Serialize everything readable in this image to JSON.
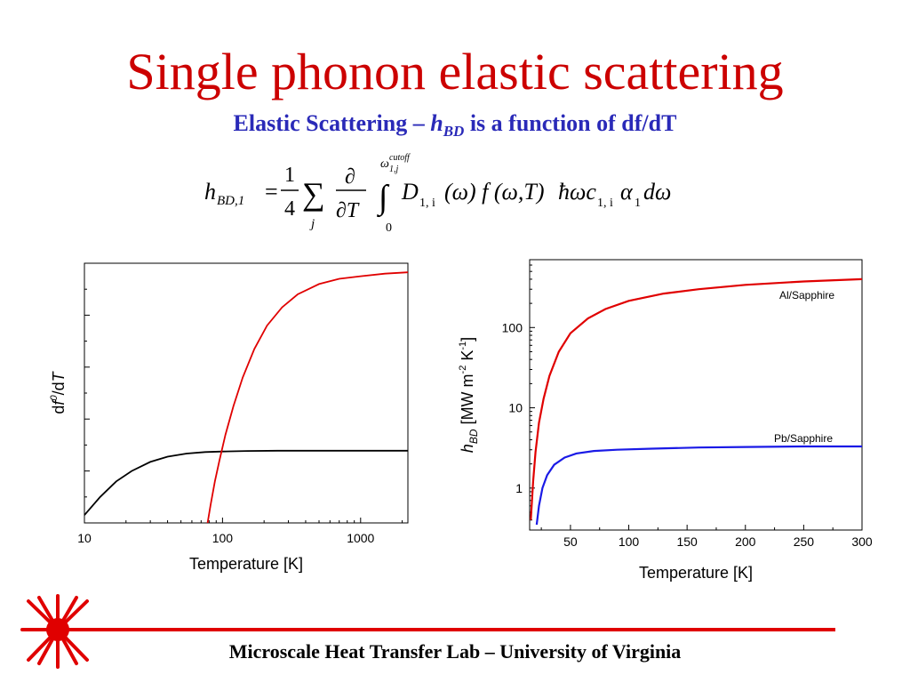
{
  "slide": {
    "title": "Single phonon elastic scattering",
    "subtitle_pre": "Elastic Scattering – ",
    "subtitle_h": "h",
    "subtitle_sub": "BD",
    "subtitle_post": " is a function of df/dT",
    "footer": "Microscale Heat Transfer Lab – University of Virginia"
  },
  "equation": {
    "lhs_h": "h",
    "lhs_sub": "BD,1",
    "equals": "=",
    "frac_num": "1",
    "frac_den": "4",
    "sum_symbol": "∑",
    "sum_index": "j",
    "partial_num": "∂",
    "partial_den": "∂T",
    "integral": "∫",
    "upper_limit_omega": "ω",
    "upper_limit_sup": "cutoff",
    "upper_limit_sub": "1,j",
    "lower_limit": "0",
    "integrand": "D",
    "integrand_sub": "1, i",
    "integrand_rest_1": "(ω) f (ω,T)",
    "integrand_hbar": "ħωc",
    "integrand_c_sub": "1, i",
    "integrand_alpha": "α",
    "integrand_alpha_sub": "1",
    "integrand_end": "dω"
  },
  "colors": {
    "title": "#cc0000",
    "subtitle": "#2a2ab8",
    "red_series": "#e00000",
    "blue_series": "#1a1ae6",
    "black_series": "#000000",
    "footer_line": "#e00000"
  },
  "chart_data": [
    {
      "type": "line",
      "title": "",
      "xlabel": "Temperature [K]",
      "ylabel_pre": "d",
      "ylabel_f": "f",
      "ylabel_sup": "0",
      "ylabel_post": "/d",
      "ylabel_T": "T",
      "xscale": "log",
      "xlim": [
        10,
        2200
      ],
      "ylim": [
        0,
        1
      ],
      "x_ticks": [
        10,
        100,
        1000
      ],
      "x_tick_labels": [
        "10",
        "100",
        "1000"
      ],
      "y_tick_labels_shown": false,
      "series": [
        {
          "color": "#000000",
          "x": [
            10,
            13,
            17,
            22,
            30,
            40,
            55,
            75,
            100,
            150,
            250,
            500,
            1000,
            2200
          ],
          "y": [
            0.03,
            0.1,
            0.16,
            0.2,
            0.235,
            0.255,
            0.267,
            0.273,
            0.275,
            0.277,
            0.278,
            0.278,
            0.278,
            0.278
          ]
        },
        {
          "color": "#e00000",
          "x": [
            78,
            82,
            88,
            95,
            105,
            120,
            140,
            170,
            210,
            270,
            350,
            500,
            700,
            1000,
            1500,
            2200
          ],
          "y": [
            0.0,
            0.07,
            0.16,
            0.24,
            0.34,
            0.45,
            0.56,
            0.67,
            0.76,
            0.83,
            0.88,
            0.92,
            0.94,
            0.95,
            0.96,
            0.965
          ]
        }
      ]
    },
    {
      "type": "line",
      "title": "",
      "xlabel": "Temperature [K]",
      "ylabel_h": "h",
      "ylabel_sub": "BD",
      "ylabel_rest_1": " [MW m",
      "ylabel_sup1": "-2",
      "ylabel_rest_2": " K",
      "ylabel_sup2": "-1",
      "ylabel_rest_3": "]",
      "yscale": "log",
      "xlim": [
        15,
        300
      ],
      "ylim": [
        0.3,
        700
      ],
      "x_ticks": [
        50,
        100,
        150,
        200,
        250,
        300
      ],
      "x_tick_labels": [
        "50",
        "100",
        "150",
        "200",
        "250",
        "300"
      ],
      "y_ticks": [
        1,
        10,
        100
      ],
      "y_tick_labels": [
        "1",
        "10",
        "100"
      ],
      "series": [
        {
          "name": "Al/Sapphire",
          "color": "#e00000",
          "x": [
            16,
            18,
            20,
            23,
            27,
            32,
            40,
            50,
            65,
            80,
            100,
            130,
            160,
            200,
            250,
            300
          ],
          "y": [
            0.4,
            1.2,
            2.8,
            6.5,
            13,
            25,
            50,
            85,
            130,
            170,
            215,
            265,
            300,
            340,
            375,
            400
          ]
        },
        {
          "name": "Pb/Sapphire",
          "color": "#1a1ae6",
          "x": [
            21,
            23,
            26,
            30,
            36,
            45,
            55,
            70,
            90,
            120,
            160,
            200,
            250,
            300
          ],
          "y": [
            0.35,
            0.6,
            1.0,
            1.45,
            1.95,
            2.4,
            2.7,
            2.9,
            3.0,
            3.1,
            3.2,
            3.25,
            3.3,
            3.3
          ]
        }
      ]
    }
  ]
}
